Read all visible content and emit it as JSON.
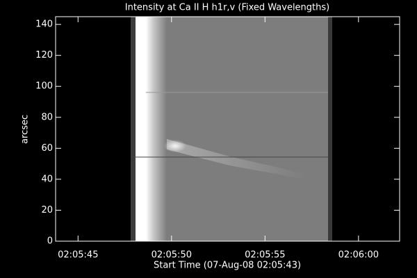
{
  "chart_data": {
    "type": "image",
    "title": "Intensity at Ca II H h1r,v (Fixed Wavelengths)",
    "x_label": "Start Time (07-Aug-08 02:05:43)",
    "y_label": "arcsec",
    "xlim": [
      43.8,
      62.2
    ],
    "xticks": [
      {
        "value": 45,
        "label": "02:05:45"
      },
      {
        "value": 50,
        "label": "02:05:50"
      },
      {
        "value": 55,
        "label": "02:05:55"
      },
      {
        "value": 60,
        "label": "02:06:00"
      }
    ],
    "ylim": [
      0,
      145
    ],
    "yticks": [
      0,
      20,
      40,
      60,
      80,
      100,
      120,
      140
    ]
  }
}
